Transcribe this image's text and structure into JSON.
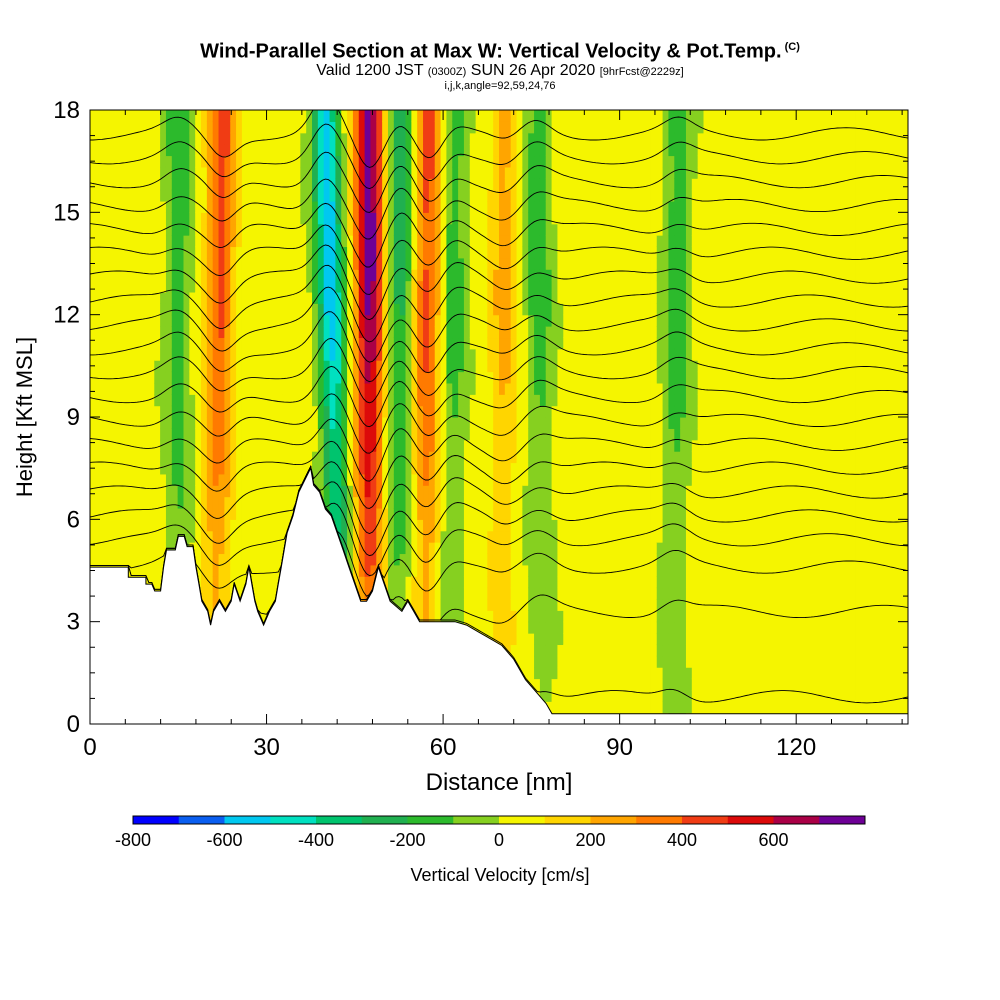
{
  "title": {
    "main": "Wind-Parallel Section at Max W: Vertical Velocity & Pot.Temp.",
    "copyright": "(C)",
    "valid_prefix": "Valid 1200 JST",
    "valid_utc": "(0300Z)",
    "valid_date": "SUN 26 Apr 2020",
    "forecast_note": "[9hrFcst@2229z]",
    "indices": "i,j,k,angle=92,59,24,76"
  },
  "colorbar": {
    "label": "Vertical Velocity [cm/s]",
    "tick_labels": [
      "-800",
      "-600",
      "-400",
      "-200",
      "0",
      "200",
      "400",
      "600"
    ],
    "levels": [
      -800,
      -700,
      -600,
      -500,
      -400,
      -300,
      -200,
      -100,
      0,
      100,
      200,
      300,
      400,
      500,
      600,
      700
    ],
    "colors": [
      "#0000ff",
      "#0a5ef0",
      "#00c8f0",
      "#00e0c0",
      "#00c46e",
      "#20b050",
      "#2cba2c",
      "#86d020",
      "#f5f500",
      "#ffd500",
      "#ffa500",
      "#ff7a00",
      "#f03c14",
      "#dc0a0a",
      "#aa0046",
      "#6e0096"
    ]
  },
  "chart_data": {
    "type": "heatmap",
    "xlabel": "Distance [nm]",
    "ylabel": "Height [Kft MSL]",
    "xlim": [
      0,
      139
    ],
    "ylim": [
      0,
      18
    ],
    "xticks": [
      0,
      30,
      60,
      90,
      120
    ],
    "yticks": [
      0,
      3,
      6,
      9,
      12,
      15,
      18
    ],
    "field": "Vertical Velocity [cm/s]",
    "contour_field": "Potential Temperature",
    "terrain_profile": [
      [
        0,
        4.6
      ],
      [
        6.5,
        4.6
      ],
      [
        6.5,
        4.3
      ],
      [
        9.5,
        4.3
      ],
      [
        9.5,
        4.1
      ],
      [
        10.5,
        4.1
      ],
      [
        11,
        3.9
      ],
      [
        12,
        3.9
      ],
      [
        12.5,
        4.6
      ],
      [
        13,
        5.1
      ],
      [
        14.5,
        5.1
      ],
      [
        15,
        5.5
      ],
      [
        16,
        5.5
      ],
      [
        16.5,
        5.2
      ],
      [
        17.5,
        5.2
      ],
      [
        18,
        4.6
      ],
      [
        18.5,
        4.1
      ],
      [
        19,
        3.6
      ],
      [
        20,
        3.3
      ],
      [
        20.5,
        2.9
      ],
      [
        21,
        3.3
      ],
      [
        22,
        3.6
      ],
      [
        23,
        3.3
      ],
      [
        24,
        3.6
      ],
      [
        24.5,
        4.1
      ],
      [
        25.5,
        3.6
      ],
      [
        26.5,
        4.1
      ],
      [
        27,
        4.6
      ],
      [
        27.5,
        4.1
      ],
      [
        28,
        3.6
      ],
      [
        28.5,
        3.3
      ],
      [
        29.5,
        2.9
      ],
      [
        30.5,
        3.3
      ],
      [
        31.5,
        3.6
      ],
      [
        32,
        4.1
      ],
      [
        32.5,
        4.6
      ],
      [
        33,
        5.1
      ],
      [
        33.5,
        5.6
      ],
      [
        34.5,
        6.1
      ],
      [
        35.5,
        6.8
      ],
      [
        37.5,
        7.5
      ],
      [
        38,
        7.0
      ],
      [
        39,
        6.8
      ],
      [
        40,
        6.3
      ],
      [
        41,
        6.1
      ],
      [
        42,
        5.6
      ],
      [
        43,
        5.1
      ],
      [
        44,
        4.6
      ],
      [
        45,
        4.1
      ],
      [
        46,
        3.6
      ],
      [
        47,
        3.6
      ],
      [
        48,
        3.9
      ],
      [
        49,
        4.6
      ],
      [
        50,
        4.1
      ],
      [
        51,
        3.6
      ],
      [
        53,
        3.3
      ],
      [
        54,
        3.6
      ],
      [
        55,
        3.3
      ],
      [
        56,
        3.0
      ],
      [
        62,
        3.0
      ],
      [
        64,
        2.9
      ],
      [
        66,
        2.7
      ],
      [
        68,
        2.5
      ],
      [
        70,
        2.3
      ],
      [
        72,
        1.9
      ],
      [
        74,
        1.3
      ],
      [
        76,
        0.9
      ],
      [
        77.5,
        0.6
      ],
      [
        78.5,
        0.3
      ],
      [
        139,
        0.3
      ]
    ],
    "updrafts": [
      {
        "x_at_surface": 21,
        "x_at_top": 22.5,
        "peak_cm_s": 400
      },
      {
        "x_at_surface": 47.5,
        "x_at_top": 47.5,
        "peak_cm_s": 700
      },
      {
        "x_at_surface": 57,
        "x_at_top": 57.5,
        "peak_cm_s": 400
      },
      {
        "x_at_surface": 70,
        "x_at_top": 70.5,
        "peak_cm_s": 200
      }
    ],
    "downdrafts": [
      {
        "x_at_surface": 15,
        "x_at_top": 15,
        "peak_cm_s": -200
      },
      {
        "x_at_surface": 43,
        "x_at_top": 40,
        "peak_cm_s": -600
      },
      {
        "x_at_surface": 52,
        "x_at_top": 53,
        "peak_cm_s": -300
      },
      {
        "x_at_surface": 61,
        "x_at_top": 62,
        "peak_cm_s": -200
      },
      {
        "x_at_surface": 77,
        "x_at_top": 76,
        "peak_cm_s": -200
      },
      {
        "x_at_surface": 99,
        "x_at_top": 100,
        "peak_cm_s": -200
      }
    ],
    "isentrope_heights_kft": [
      0.8,
      3.3,
      4.6,
      5.4,
      6.1,
      6.8,
      7.5,
      8.2,
      8.9,
      9.6,
      10.3,
      11.0,
      11.7,
      12.4,
      13.1,
      13.8,
      14.5,
      15.2,
      15.9,
      16.6,
      17.3
    ]
  }
}
